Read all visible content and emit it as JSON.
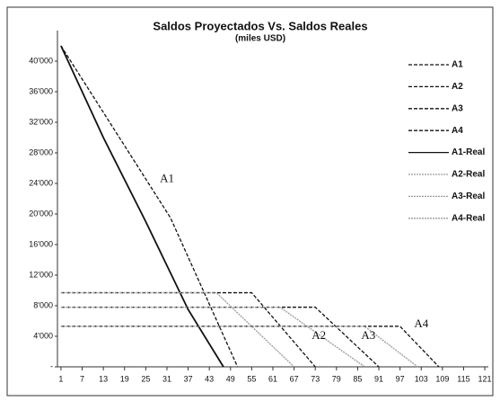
{
  "chart_data": {
    "type": "line",
    "title": "Saldos Proyectados Vs. Saldos Reales",
    "subtitle": "(miles USD)",
    "xlim": [
      0,
      122
    ],
    "xticks": [
      1,
      7,
      13,
      19,
      25,
      31,
      37,
      43,
      49,
      55,
      61,
      67,
      73,
      79,
      85,
      91,
      97,
      103,
      109,
      115,
      121
    ],
    "ylim": [
      0,
      44000
    ],
    "yticks": [
      {
        "value": 0,
        "label": "-"
      },
      {
        "value": 4000,
        "label": "4'000"
      },
      {
        "value": 8000,
        "label": "8'000"
      },
      {
        "value": 12000,
        "label": "12'000"
      },
      {
        "value": 16000,
        "label": "16'000"
      },
      {
        "value": 20000,
        "label": "20'000"
      },
      {
        "value": 24000,
        "label": "24'000"
      },
      {
        "value": 28000,
        "label": "28'000"
      },
      {
        "value": 32000,
        "label": "32'000"
      },
      {
        "value": 36000,
        "label": "36'000"
      },
      {
        "value": 40000,
        "label": "40'000"
      }
    ],
    "legend": "top-right",
    "series": [
      {
        "name": "A1",
        "color": "#111111",
        "dash": "dashed",
        "x": [
          1,
          32,
          51
        ],
        "values": [
          42000,
          19500,
          0
        ]
      },
      {
        "name": "A2",
        "color": "#111111",
        "dash": "dashed",
        "x": [
          1,
          49,
          55,
          73
        ],
        "values": [
          9700,
          9700,
          9700,
          0
        ]
      },
      {
        "name": "A3",
        "color": "#111111",
        "dash": "dashed",
        "x": [
          1,
          73,
          91
        ],
        "values": [
          7800,
          7800,
          0
        ]
      },
      {
        "name": "A4",
        "color": "#111111",
        "dash": "dashed",
        "x": [
          1,
          97,
          108
        ],
        "values": [
          5300,
          5300,
          0
        ]
      },
      {
        "name": "A1-Real",
        "color": "#111111",
        "dash": "solid",
        "x": [
          1,
          13,
          25,
          37,
          47
        ],
        "values": [
          42000,
          30000,
          19000,
          7500,
          0
        ]
      },
      {
        "name": "A2-Real",
        "color": "#9a9a9a",
        "dash": "dotted",
        "x": [
          1,
          45,
          67
        ],
        "values": [
          9700,
          9700,
          0
        ]
      },
      {
        "name": "A3-Real",
        "color": "#9a9a9a",
        "dash": "dotted",
        "x": [
          1,
          63,
          87
        ],
        "values": [
          7800,
          7800,
          0
        ]
      },
      {
        "name": "A4-Real",
        "color": "#9a9a9a",
        "dash": "dotted",
        "x": [
          1,
          87,
          102
        ],
        "values": [
          5300,
          5300,
          0
        ]
      }
    ],
    "annotations": [
      "A1",
      "A2",
      "A3",
      "A4"
    ]
  }
}
